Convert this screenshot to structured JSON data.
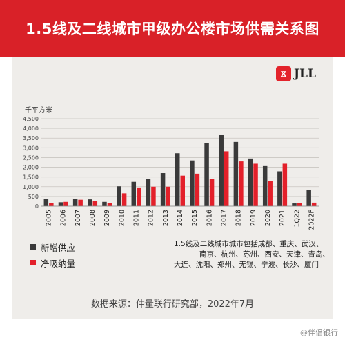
{
  "title": "1.5线及二线城市甲级办公楼市场供需关系图",
  "logo": {
    "mark": "⧖",
    "text": "JLL"
  },
  "unit": "千平方米",
  "colors": {
    "supply": "#3a3a3a",
    "absorption": "#e3202a",
    "grid": "#c9c6c1"
  },
  "chart_data": {
    "type": "bar",
    "categories": [
      "2005",
      "2006",
      "2007",
      "2008",
      "2009",
      "2010",
      "2011",
      "2012",
      "2013",
      "2014",
      "2015",
      "2016",
      "2017",
      "2018",
      "2019",
      "2020",
      "2021",
      "1Q22",
      "2022F"
    ],
    "ylim": [
      0,
      4500
    ],
    "yticks": [
      "0",
      "500",
      "1,000",
      "1,500",
      "2,000",
      "2,500",
      "3,000",
      "3,500",
      "4,000",
      "4,500"
    ],
    "series": [
      {
        "name": "新增供应",
        "values": [
          370,
          200,
          370,
          350,
          220,
          1020,
          1250,
          1400,
          1700,
          2720,
          2350,
          3250,
          3650,
          3300,
          2450,
          2060,
          1790,
          140,
          830
        ]
      },
      {
        "name": "净吸纳量",
        "values": [
          160,
          220,
          330,
          280,
          150,
          660,
          960,
          1000,
          1000,
          1570,
          1670,
          1400,
          2820,
          2300,
          2180,
          1280,
          2180,
          160,
          180
        ]
      }
    ]
  },
  "legend": {
    "supply": "新增供应",
    "absorption": "净吸纳量"
  },
  "note": [
    "1.5线及二线城市城市包括成都、重庆、武汉、",
    "南京、杭州、苏州、西安、天津、青岛、",
    "大连、沈阳、郑州、无锡、宁波、长沙、厦门"
  ],
  "source": "数据来源：仲量联行研究部，2022年7月",
  "watermark": "@伴侣银行"
}
